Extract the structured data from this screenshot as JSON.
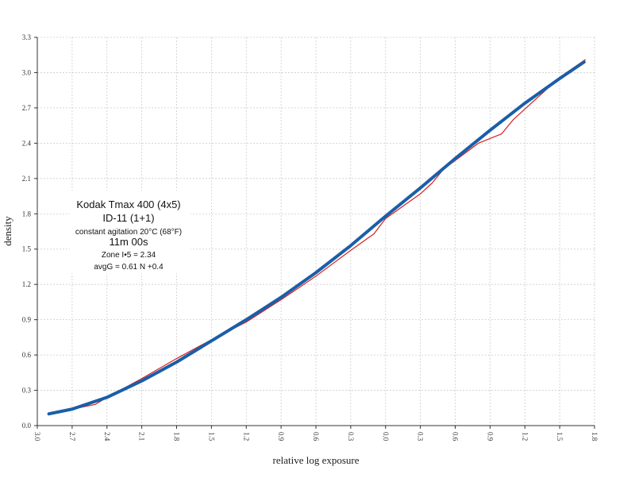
{
  "chart_data": {
    "type": "line",
    "xlabel": "relative log exposure",
    "ylabel": "density",
    "xlim": [
      -3.0,
      1.8
    ],
    "xticks": [
      {
        "value": -3.0,
        "label": "3.0"
      },
      {
        "value": -2.7,
        "label": "2.7"
      },
      {
        "value": -2.4,
        "label": "2.4"
      },
      {
        "value": -2.1,
        "label": "2.1"
      },
      {
        "value": -1.8,
        "label": "1.8"
      },
      {
        "value": -1.5,
        "label": "1.5"
      },
      {
        "value": -1.2,
        "label": "1.2"
      },
      {
        "value": -0.9,
        "label": "0.9"
      },
      {
        "value": -0.6,
        "label": "0.6"
      },
      {
        "value": -0.3,
        "label": "0.3"
      },
      {
        "value": 0,
        "label": "0.0"
      },
      0.3,
      0.6,
      0.9,
      1.2,
      1.5,
      1.8
    ],
    "ylim": [
      0,
      3.3
    ],
    "yticks": [
      {
        "value": 0,
        "label": "0.0"
      },
      0.3,
      0.6,
      0.9,
      1.2,
      1.5,
      1.8,
      2.1,
      2.4,
      2.7,
      {
        "value": 3,
        "label": "3.0"
      },
      3.3
    ],
    "grid": true,
    "annotations": [
      "Kodak Tmax 400 (4x5)",
      "ID-11 (1+1)",
      "constant agitation   20°C (68°F)",
      "11m 00s",
      "Zone I•5 = 2.34",
      "avgG = 0.61     N +0.4"
    ],
    "series": [
      {
        "color": "#d42020",
        "width": 1.2,
        "x": [
          -2.9,
          -2.7,
          -2.5,
          -2.4,
          -2.1,
          -1.8,
          -1.5,
          -1.2,
          -0.9,
          -0.6,
          -0.3,
          -0.1,
          0,
          0.3,
          0.4,
          0.5,
          0.8,
          1.0,
          1.1,
          1.5,
          1.72
        ],
        "values": [
          0.1,
          0.14,
          0.18,
          0.24,
          0.4,
          0.57,
          0.73,
          0.88,
          1.07,
          1.27,
          1.49,
          1.63,
          1.76,
          1.97,
          2.06,
          2.18,
          2.4,
          2.48,
          2.6,
          2.96,
          3.11
        ]
      },
      {
        "color": "#1a5ea8",
        "width": 4,
        "x": [
          -2.9,
          -2.7,
          -2.4,
          -2.1,
          -1.8,
          -1.5,
          -1.2,
          -0.9,
          -0.6,
          -0.3,
          0,
          0.3,
          0.6,
          0.9,
          1.2,
          1.5,
          1.71
        ],
        "values": [
          0.1,
          0.14,
          0.24,
          0.38,
          0.54,
          0.72,
          0.9,
          1.09,
          1.3,
          1.53,
          1.78,
          2.02,
          2.27,
          2.51,
          2.74,
          2.95,
          3.09
        ]
      }
    ]
  }
}
